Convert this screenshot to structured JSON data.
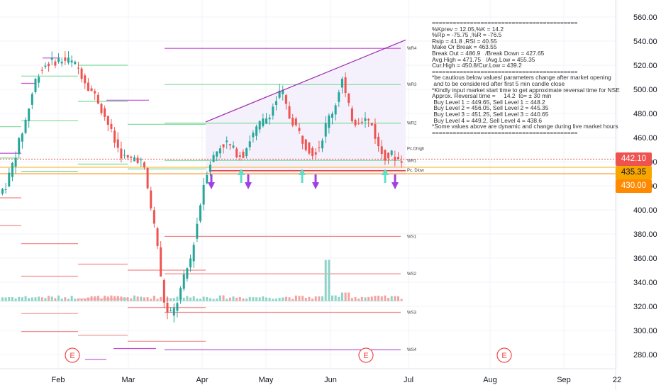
{
  "chart_data": {
    "type": "candlestick",
    "y_axis": {
      "ticks": [
        "560.00",
        "540.00",
        "520.00",
        "500.00",
        "480.00",
        "460.00",
        "440.00",
        "420.00",
        "400.00",
        "380.00",
        "360.00",
        "340.00",
        "320.00",
        "300.00",
        "280.00"
      ],
      "range": [
        270,
        566
      ]
    },
    "x_axis": {
      "ticks": [
        "Feb",
        "Mar",
        "Apr",
        "May",
        "Jun",
        "Jul",
        "Aug",
        "Sep",
        "22"
      ]
    },
    "price_labels": [
      {
        "value": "442.10",
        "color": "#ef5350",
        "text_color": "#ffffff"
      },
      {
        "value": "435.35",
        "color": "#f7a600",
        "text_color": "#131722"
      },
      {
        "value": "430.00",
        "color": "#ff8a00",
        "text_color": "#ffffff"
      }
    ],
    "level_labels": [
      {
        "text": "WR4",
        "value": 534
      },
      {
        "text": "WR3",
        "value": 504
      },
      {
        "text": "WR2",
        "value": 472
      },
      {
        "text": "Pc.Dhigh",
        "value": 451
      },
      {
        "text": "WR1",
        "value": 441
      },
      {
        "text": "Pc. Dlow",
        "value": 433
      },
      {
        "text": "WS1",
        "value": 378
      },
      {
        "text": "WS2",
        "value": 347
      },
      {
        "text": "WS3",
        "value": 315
      },
      {
        "text": "WS4",
        "value": 284
      }
    ],
    "earnings_markers": [
      "E",
      "E",
      "E"
    ],
    "notes": [
      "==========================================",
      "%Kprev = 12.05,%K = 14.2",
      "%Rp = -75.75 ,%R = -76.5",
      "Rsip = 41.8 ,RSI = 40.55",
      "Make Or Break = 463.55",
      "Break Out = 486.9   /Break Down = 427.65",
      "Avg.High = 471.75   /Avg.Low = 455.35",
      "Cur.High = 450.8/Cur.Low = 439.2",
      "",
      "==========================================",
      "*be cautious below values/ parameters change after market opening",
      " and to be considered after first 5 min candle close",
      "*Kindly input market start time to get approximate reversal time for NSE",
      "Approx. Reversal time =     14.2  to= ± 30 min",
      " Buy Level 1 = 449.65, Sell Level 1 = 448.2",
      " Buy Level 2 = 456.05, Sell Level 2 = 445.35",
      " Buy Level 3 = 451.25, Sell Level 3 = 440.65",
      " Buy Level 4 = 449.2, Sell Level 4 = 438.6",
      "*Some values above are dynamic and change during live market hours",
      "=========================================="
    ],
    "colors": {
      "up": "#26a69a",
      "down": "#ef5350",
      "trend": "#9c27b0",
      "channel_fill": "#f3eefc",
      "cyan_arrow": "#5fe0c8",
      "purple_arrow": "#a040e0"
    }
  }
}
